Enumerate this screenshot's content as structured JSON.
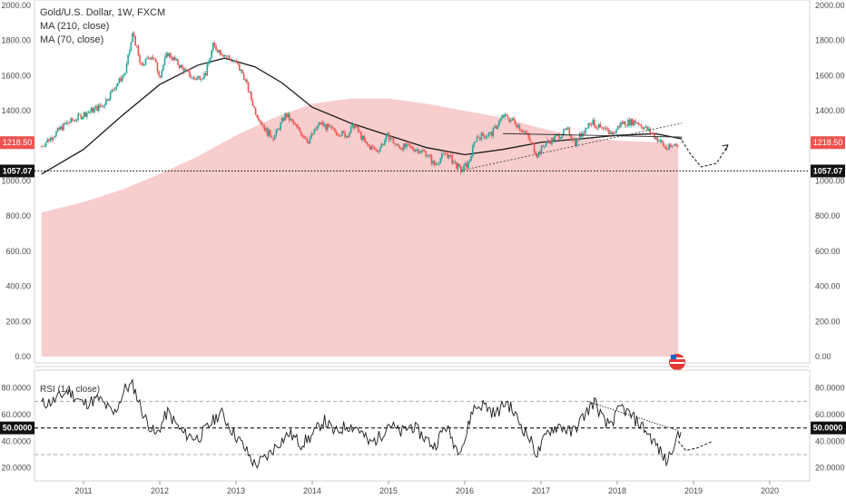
{
  "legend": {
    "title": "Gold/U.S. Dollar, 1W, FXCM",
    "ma210": "MA (210, close)",
    "ma70": "MA (70, close)"
  },
  "rsi_legend": "RSI (14, close)",
  "colors": {
    "up": "#26a69a",
    "down": "#ef5350",
    "volume_profile": "#f7c4c4",
    "ma": "#1a1a1a",
    "rsi": "#1a1a1a",
    "price_badge": "#ef5350"
  },
  "chart_data": [
    {
      "type": "candlestick",
      "title": "Gold/U.S. Dollar, 1W, FXCM",
      "ylim": [
        0,
        2000
      ],
      "y_ticks": [
        "2000.00",
        "1800.00",
        "1600.00",
        "1400.00",
        "1200.00",
        "1000.00",
        "800.00",
        "600.00",
        "400.00",
        "200.00",
        "0.00"
      ],
      "x_ticks": [
        "2011",
        "2012",
        "2013",
        "2014",
        "2015",
        "2016",
        "2017",
        "2018",
        "2019",
        "2020"
      ],
      "price_path": [
        [
          2010.45,
          1200
        ],
        [
          2010.75,
          1320
        ],
        [
          2011.0,
          1380
        ],
        [
          2011.25,
          1430
        ],
        [
          2011.4,
          1530
        ],
        [
          2011.55,
          1620
        ],
        [
          2011.65,
          1850
        ],
        [
          2011.75,
          1650
        ],
        [
          2011.9,
          1720
        ],
        [
          2012.0,
          1600
        ],
        [
          2012.1,
          1730
        ],
        [
          2012.3,
          1640
        ],
        [
          2012.45,
          1580
        ],
        [
          2012.6,
          1610
        ],
        [
          2012.7,
          1770
        ],
        [
          2012.85,
          1720
        ],
        [
          2013.0,
          1670
        ],
        [
          2013.1,
          1600
        ],
        [
          2013.25,
          1400
        ],
        [
          2013.4,
          1280
        ],
        [
          2013.5,
          1250
        ],
        [
          2013.65,
          1380
        ],
        [
          2013.8,
          1300
        ],
        [
          2013.95,
          1230
        ],
        [
          2014.1,
          1330
        ],
        [
          2014.25,
          1290
        ],
        [
          2014.45,
          1260
        ],
        [
          2014.55,
          1320
        ],
        [
          2014.7,
          1210
        ],
        [
          2014.85,
          1170
        ],
        [
          2015.0,
          1260
        ],
        [
          2015.1,
          1200
        ],
        [
          2015.3,
          1190
        ],
        [
          2015.5,
          1160
        ],
        [
          2015.6,
          1090
        ],
        [
          2015.75,
          1160
        ],
        [
          2015.95,
          1060
        ],
        [
          2016.05,
          1100
        ],
        [
          2016.15,
          1250
        ],
        [
          2016.35,
          1270
        ],
        [
          2016.5,
          1370
        ],
        [
          2016.65,
          1340
        ],
        [
          2016.8,
          1270
        ],
        [
          2016.95,
          1150
        ],
        [
          2017.05,
          1210
        ],
        [
          2017.2,
          1250
        ],
        [
          2017.35,
          1290
        ],
        [
          2017.45,
          1220
        ],
        [
          2017.65,
          1340
        ],
        [
          2017.8,
          1290
        ],
        [
          2017.95,
          1270
        ],
        [
          2018.05,
          1330
        ],
        [
          2018.25,
          1340
        ],
        [
          2018.4,
          1290
        ],
        [
          2018.55,
          1230
        ],
        [
          2018.65,
          1180
        ],
        [
          2018.8,
          1218.5
        ]
      ],
      "ma210_path": [
        [
          2010.45,
          1040
        ],
        [
          2011.0,
          1180
        ],
        [
          2011.5,
          1370
        ],
        [
          2012.0,
          1550
        ],
        [
          2012.5,
          1660
        ],
        [
          2012.85,
          1700
        ],
        [
          2013.25,
          1650
        ],
        [
          2013.6,
          1560
        ],
        [
          2014.0,
          1420
        ],
        [
          2014.5,
          1330
        ],
        [
          2015.0,
          1260
        ],
        [
          2015.5,
          1190
        ],
        [
          2016.0,
          1150
        ],
        [
          2016.5,
          1180
        ],
        [
          2017.0,
          1220
        ],
        [
          2017.5,
          1240
        ],
        [
          2018.0,
          1260
        ],
        [
          2018.5,
          1270
        ],
        [
          2018.85,
          1240
        ]
      ],
      "volume_profile_path": [
        [
          2010.45,
          820
        ],
        [
          2011.0,
          880
        ],
        [
          2011.5,
          950
        ],
        [
          2012.0,
          1040
        ],
        [
          2012.5,
          1140
        ],
        [
          2013.0,
          1260
        ],
        [
          2013.5,
          1360
        ],
        [
          2014.0,
          1440
        ],
        [
          2014.5,
          1470
        ],
        [
          2015.0,
          1470
        ],
        [
          2015.5,
          1440
        ],
        [
          2016.0,
          1400
        ],
        [
          2016.5,
          1360
        ],
        [
          2017.0,
          1300
        ],
        [
          2017.5,
          1250
        ],
        [
          2018.0,
          1230
        ],
        [
          2018.5,
          1220
        ],
        [
          2018.8,
          1210
        ]
      ],
      "support_level": 1057.07,
      "support_label": "1057.07",
      "last_price": 1218.5,
      "last_price_label": "1218.50",
      "trendline_up": [
        [
          2015.95,
          1060
        ],
        [
          2018.85,
          1330
        ]
      ],
      "trendline_flat": [
        [
          2016.5,
          1270
        ],
        [
          2018.85,
          1250
        ]
      ],
      "projection": [
        [
          2018.85,
          1230
        ],
        [
          2018.95,
          1160
        ],
        [
          2019.1,
          1080
        ],
        [
          2019.3,
          1100
        ],
        [
          2019.45,
          1200
        ]
      ]
    },
    {
      "type": "line",
      "title": "RSI (14, close)",
      "ylim": [
        15,
        90
      ],
      "y_ticks": [
        "80.0000",
        "60.0000",
        "40.0000",
        "20.0000"
      ],
      "midline": 50,
      "midline_label": "50.0000",
      "upper_band": 70,
      "lower_band": 30,
      "rsi_path": [
        [
          2010.45,
          68
        ],
        [
          2010.6,
          70
        ],
        [
          2010.8,
          78
        ],
        [
          2011.0,
          68
        ],
        [
          2011.2,
          72
        ],
        [
          2011.4,
          60
        ],
        [
          2011.55,
          80
        ],
        [
          2011.65,
          82
        ],
        [
          2011.8,
          58
        ],
        [
          2011.95,
          44
        ],
        [
          2012.1,
          62
        ],
        [
          2012.3,
          46
        ],
        [
          2012.5,
          42
        ],
        [
          2012.65,
          52
        ],
        [
          2012.8,
          62
        ],
        [
          2012.95,
          48
        ],
        [
          2013.1,
          36
        ],
        [
          2013.25,
          22
        ],
        [
          2013.4,
          28
        ],
        [
          2013.55,
          38
        ],
        [
          2013.7,
          46
        ],
        [
          2013.85,
          38
        ],
        [
          2014.0,
          44
        ],
        [
          2014.15,
          56
        ],
        [
          2014.3,
          46
        ],
        [
          2014.45,
          52
        ],
        [
          2014.6,
          50
        ],
        [
          2014.75,
          38
        ],
        [
          2014.9,
          44
        ],
        [
          2015.0,
          54
        ],
        [
          2015.15,
          46
        ],
        [
          2015.3,
          52
        ],
        [
          2015.45,
          44
        ],
        [
          2015.6,
          36
        ],
        [
          2015.75,
          52
        ],
        [
          2015.9,
          34
        ],
        [
          2016.0,
          40
        ],
        [
          2016.1,
          64
        ],
        [
          2016.25,
          68
        ],
        [
          2016.4,
          60
        ],
        [
          2016.55,
          70
        ],
        [
          2016.7,
          56
        ],
        [
          2016.85,
          42
        ],
        [
          2016.95,
          30
        ],
        [
          2017.1,
          48
        ],
        [
          2017.25,
          52
        ],
        [
          2017.4,
          46
        ],
        [
          2017.55,
          58
        ],
        [
          2017.7,
          70
        ],
        [
          2017.85,
          52
        ],
        [
          2017.95,
          56
        ],
        [
          2018.05,
          66
        ],
        [
          2018.2,
          58
        ],
        [
          2018.35,
          50
        ],
        [
          2018.5,
          38
        ],
        [
          2018.65,
          24
        ],
        [
          2018.75,
          40
        ],
        [
          2018.85,
          46
        ]
      ],
      "trendline_rsi": [
        [
          2017.6,
          70
        ],
        [
          2018.8,
          48
        ]
      ],
      "projection_rsi": [
        [
          2018.8,
          40
        ],
        [
          2018.9,
          33
        ],
        [
          2019.05,
          35
        ],
        [
          2019.25,
          40
        ]
      ]
    }
  ]
}
